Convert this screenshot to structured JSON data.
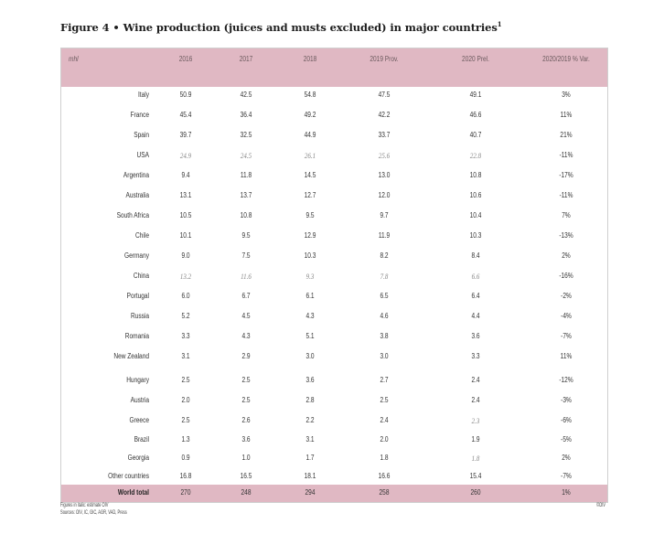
{
  "title": "Figure 4 • Wine production (juices and musts excluded) in major countries",
  "title_note": "1",
  "header": {
    "unit": "mhl",
    "columns": [
      "2016",
      "2017",
      "2018",
      "2019 Prov.",
      "2020 Prel.",
      "2020/2019 % Var."
    ]
  },
  "rows": [
    {
      "country": "Italy",
      "values": [
        "50.9",
        "42.5",
        "54.8",
        "47.5",
        "49.1",
        "3%"
      ],
      "italic": [
        false,
        false,
        false,
        false,
        false
      ]
    },
    {
      "country": "France",
      "values": [
        "45.4",
        "36.4",
        "49.2",
        "42.2",
        "46.6",
        "11%"
      ],
      "italic": [
        false,
        false,
        false,
        false,
        false
      ]
    },
    {
      "country": "Spain",
      "values": [
        "39.7",
        "32.5",
        "44.9",
        "33.7",
        "40.7",
        "21%"
      ],
      "italic": [
        false,
        false,
        false,
        false,
        false
      ]
    },
    {
      "country": "USA",
      "values": [
        "24.9",
        "24.5",
        "26.1",
        "25.6",
        "22.8",
        "-11%"
      ],
      "italic": [
        true,
        true,
        true,
        true,
        true
      ]
    },
    {
      "country": "Argentina",
      "values": [
        "9.4",
        "11.8",
        "14.5",
        "13.0",
        "10.8",
        "-17%"
      ],
      "italic": [
        false,
        false,
        false,
        false,
        false
      ]
    },
    {
      "country": "Australia",
      "values": [
        "13.1",
        "13.7",
        "12.7",
        "12.0",
        "10.6",
        "-11%"
      ],
      "italic": [
        false,
        false,
        false,
        false,
        false
      ]
    },
    {
      "country": "South Africa",
      "values": [
        "10.5",
        "10.8",
        "9.5",
        "9.7",
        "10.4",
        "7%"
      ],
      "italic": [
        false,
        false,
        false,
        false,
        false
      ]
    },
    {
      "country": "Chile",
      "values": [
        "10.1",
        "9.5",
        "12.9",
        "11.9",
        "10.3",
        "-13%"
      ],
      "italic": [
        false,
        false,
        false,
        false,
        false
      ]
    },
    {
      "country": "Germany",
      "values": [
        "9.0",
        "7.5",
        "10.3",
        "8.2",
        "8.4",
        "2%"
      ],
      "italic": [
        false,
        false,
        false,
        false,
        false
      ]
    },
    {
      "country": "China",
      "values": [
        "13.2",
        "11.6",
        "9.3",
        "7.8",
        "6.6",
        "-16%"
      ],
      "italic": [
        true,
        true,
        true,
        true,
        true
      ]
    },
    {
      "country": "Portugal",
      "values": [
        "6.0",
        "6.7",
        "6.1",
        "6.5",
        "6.4",
        "-2%"
      ],
      "italic": [
        false,
        false,
        false,
        false,
        false
      ]
    },
    {
      "country": "Russia",
      "values": [
        "5.2",
        "4.5",
        "4.3",
        "4.6",
        "4.4",
        "-4%"
      ],
      "italic": [
        false,
        false,
        false,
        false,
        false
      ]
    },
    {
      "country": "Romania",
      "values": [
        "3.3",
        "4.3",
        "5.1",
        "3.8",
        "3.6",
        "-7%"
      ],
      "italic": [
        false,
        false,
        false,
        false,
        false
      ]
    },
    {
      "country": "New Zealand",
      "values": [
        "3.1",
        "2.9",
        "3.0",
        "3.0",
        "3.3",
        "11%"
      ],
      "italic": [
        false,
        false,
        false,
        false,
        false
      ]
    },
    {
      "country": "Hungary",
      "values": [
        "2.5",
        "2.5",
        "3.6",
        "2.7",
        "2.4",
        "-12%"
      ],
      "italic": [
        false,
        false,
        false,
        false,
        false
      ]
    },
    {
      "country": "Austria",
      "values": [
        "2.0",
        "2.5",
        "2.8",
        "2.5",
        "2.4",
        "-3%"
      ],
      "italic": [
        false,
        false,
        false,
        false,
        false
      ]
    },
    {
      "country": "Greece",
      "values": [
        "2.5",
        "2.6",
        "2.2",
        "2.4",
        "2.3",
        "-6%"
      ],
      "italic": [
        false,
        false,
        false,
        false,
        true
      ]
    },
    {
      "country": "Brazil",
      "values": [
        "1.3",
        "3.6",
        "3.1",
        "2.0",
        "1.9",
        "-5%"
      ],
      "italic": [
        false,
        false,
        false,
        false,
        false
      ]
    },
    {
      "country": "Georgia",
      "values": [
        "0.9",
        "1.0",
        "1.7",
        "1.8",
        "1.8",
        "2%"
      ],
      "italic": [
        false,
        false,
        false,
        false,
        true
      ]
    },
    {
      "country": "Other countries",
      "values": [
        "16.8",
        "16.5",
        "18.1",
        "16.6",
        "15.4",
        "-7%"
      ],
      "italic": [
        false,
        false,
        false,
        false,
        false
      ]
    }
  ],
  "total": {
    "label": "World total",
    "values": [
      "270",
      "248",
      "294",
      "258",
      "260",
      "1%"
    ]
  },
  "notes": {
    "line1": "Figures in italic: estimate OIV",
    "line2": "Sources: OIV, IC, GIC, AGR, VAD, Press"
  },
  "credit": "©OIV"
}
